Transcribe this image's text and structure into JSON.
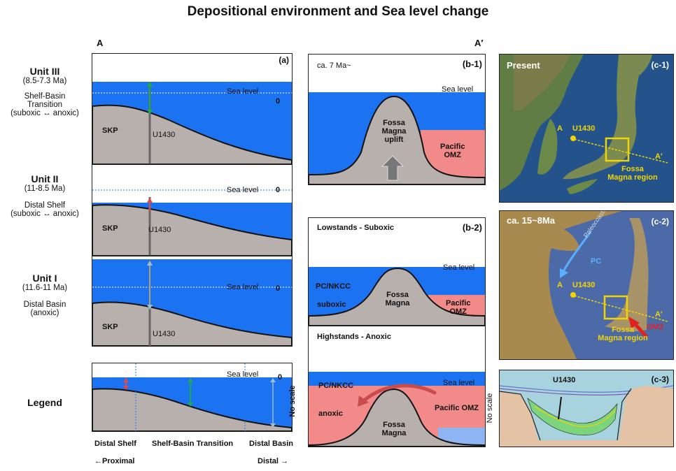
{
  "title": "Depositional environment and Sea level change",
  "section_label_left": "A",
  "section_label_right": "A′",
  "units": [
    {
      "name": "Unit III",
      "age": "(8.5-7.3 Ma)",
      "env": "Shelf-Basin",
      "env2": "Transition",
      "env3": "(suboxic ↔ anoxic)"
    },
    {
      "name": "Unit II",
      "age": "(11-8.5 Ma)",
      "env": "Distal Shelf",
      "env2": "(suboxic ↔ anoxic)"
    },
    {
      "name": "Unit I",
      "age": "(11.6-11 Ma)",
      "env": "Distal Basin",
      "env2": "(anoxic)"
    }
  ],
  "legend_label": "Legend",
  "panel_a": {
    "label": "(a)",
    "sea_level": "Sea level",
    "zero": "0",
    "skp": "SKP",
    "site": "U1430"
  },
  "legend_panel": {
    "sea_level": "Sea level",
    "zero": "0",
    "distal_shelf": "Distal Shelf",
    "transition": "Shelf-Basin Transition",
    "distal_basin": "Distal Basin",
    "proximal": "←Proximal",
    "distal": "Distal →"
  },
  "panel_b1": {
    "label": "(b-1)",
    "time": "ca. 7 Ma~",
    "sea_level": "Sea level",
    "fossa1": "Fossa",
    "fossa2": "Magna",
    "fossa3": "uplift",
    "pacific1": "Pacific",
    "pacific2": "OMZ"
  },
  "panel_b2": {
    "label": "(b-2)",
    "low_title": "Lowstands - Suboxic",
    "sea_level": "Sea level",
    "pc": "PC/NKCC",
    "suboxic": "suboxic",
    "fossa1": "Fossa",
    "fossa2": "Magna",
    "pacific1": "Pacific",
    "pacific2": "OMZ",
    "high_title": "Highstands - Anoxic",
    "sea_level2": "Sea level",
    "pc2": "PC/NKCC",
    "anoxic": "anoxic",
    "pacific_omz": "Pacific OMZ",
    "fossa3": "Fossa",
    "fossa4": "Magna",
    "no_scale": "No scale"
  },
  "panel_c1": {
    "label": "(c-1)",
    "time": "Present",
    "a": "A",
    "site": "U1430",
    "a_prime": "A′",
    "region1": "Fossa",
    "region2": "Magna region"
  },
  "panel_c2": {
    "label": "(c-2)",
    "time": "ca. 15~8Ma",
    "paleo": "Paleocoastline",
    "pc": "PC",
    "a": "A",
    "site": "U1430",
    "a_prime": "A′",
    "region1": "Fossa",
    "region2": "Magna region",
    "omz": "OMZ"
  },
  "panel_c3": {
    "label": "(c-3)",
    "site": "U1430",
    "no_scale": "No scale"
  },
  "colors": {
    "sea": "#1c73f2",
    "ground": "#b8b0ad",
    "omz": "#f28a8a",
    "pale_sea": "#8fb4f2",
    "yellow": "#f4d400",
    "green": "#1faa4c"
  }
}
